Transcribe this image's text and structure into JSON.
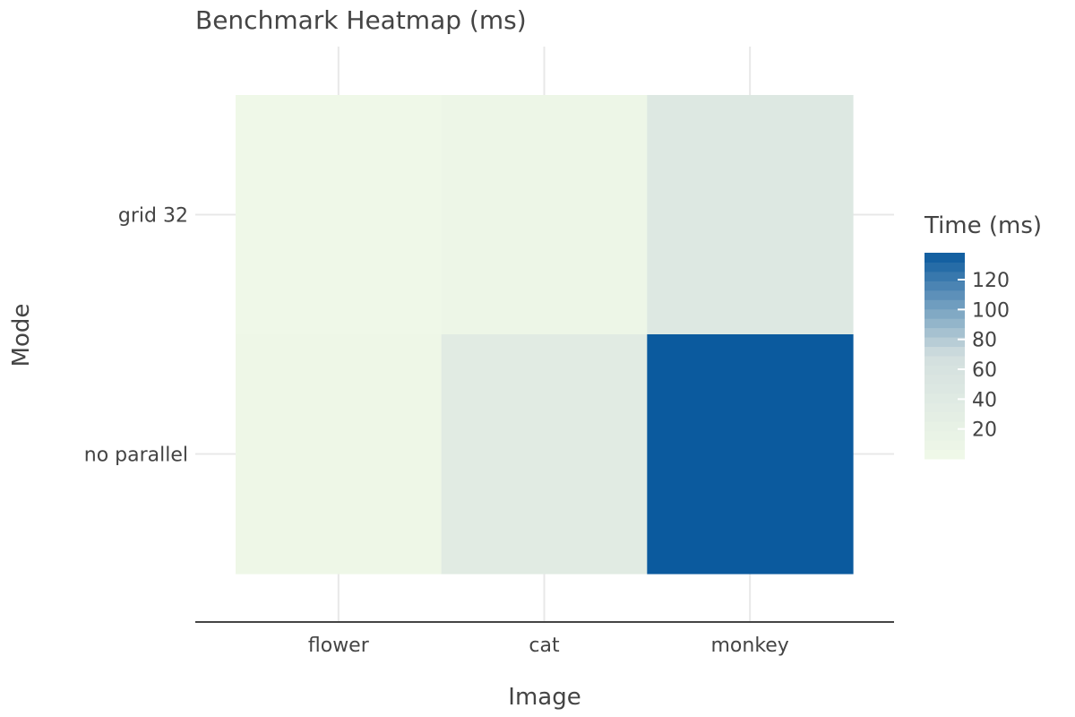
{
  "chart_data": {
    "type": "heatmap",
    "title": "Benchmark Heatmap (ms)",
    "xlabel": "Image",
    "ylabel": "Mode",
    "x_categories": [
      "flower",
      "cat",
      "monkey"
    ],
    "y_categories": [
      "grid 32",
      "no parallel"
    ],
    "values": [
      [
        2,
        8,
        45
      ],
      [
        4,
        36,
        138
      ]
    ],
    "colorbar": {
      "title": "Time (ms)",
      "ticks": [
        20,
        40,
        60,
        80,
        100,
        120
      ],
      "range": [
        0,
        138
      ],
      "colors": [
        "#f0f9e8",
        "#d3dfdf",
        "#0b5a9e"
      ]
    },
    "grid": true
  }
}
